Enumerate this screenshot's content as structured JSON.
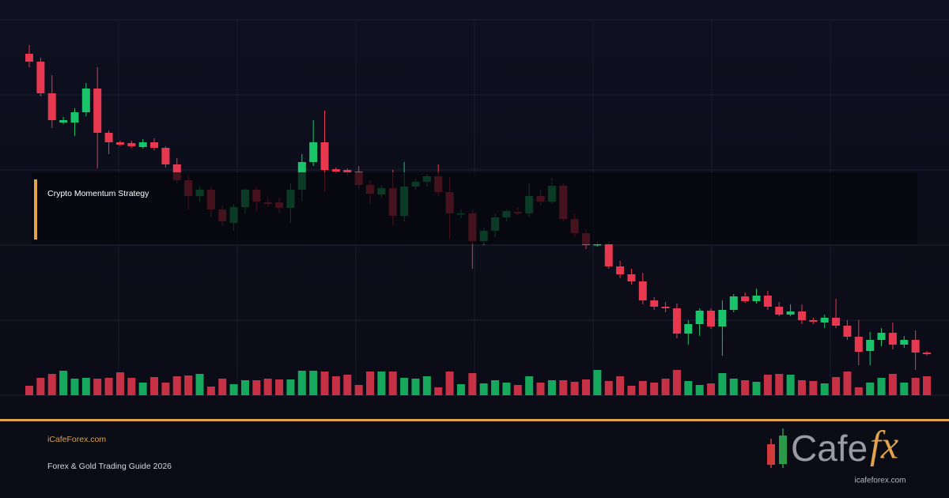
{
  "chart_data": {
    "type": "candlestick",
    "title": "Crypto Momentum Strategy",
    "up_color": "#19c46a",
    "down_color": "#e8384f",
    "ylim": [
      0,
      475
    ],
    "y2lim": [
      0,
      475
    ],
    "open": [
      432,
      422,
      382,
      345,
      345,
      358,
      388,
      332,
      320,
      319,
      314,
      320,
      313,
      292,
      272,
      252,
      260,
      235,
      218,
      238,
      260,
      244,
      244,
      237,
      260,
      295,
      320,
      286,
      285,
      283,
      266,
      254,
      262,
      227,
      264,
      270,
      277,
      257,
      229,
      230,
      195,
      208,
      225,
      232,
      230,
      252,
      245,
      265,
      223,
      205,
      190,
      191,
      163,
      153,
      144,
      120,
      112,
      110,
      78,
      90,
      107,
      87,
      108,
      125,
      119,
      126,
      112,
      102,
      106,
      95,
      92,
      98,
      88,
      74,
      56,
      70,
      79,
      64,
      70,
      54
    ],
    "high": [
      443,
      427,
      405,
      352,
      363,
      395,
      415,
      335,
      322,
      322,
      324,
      325,
      315,
      300,
      278,
      264,
      264,
      240,
      242,
      262,
      264,
      250,
      250,
      268,
      305,
      348,
      360,
      288,
      287,
      290,
      272,
      265,
      285,
      295,
      274,
      280,
      292,
      275,
      235,
      235,
      212,
      230,
      235,
      238,
      268,
      260,
      275,
      268,
      230,
      210,
      194,
      195,
      170,
      160,
      155,
      124,
      118,
      116,
      95,
      110,
      110,
      120,
      128,
      130,
      135,
      132,
      118,
      115,
      115,
      98,
      102,
      122,
      95,
      95,
      80,
      85,
      92,
      75,
      82,
      56
    ],
    "low": [
      415,
      378,
      338,
      343,
      328,
      353,
      287,
      305,
      315,
      313,
      312,
      310,
      288,
      268,
      235,
      245,
      225,
      214,
      208,
      230,
      232,
      238,
      230,
      218,
      245,
      290,
      257,
      280,
      278,
      260,
      242,
      250,
      215,
      220,
      260,
      264,
      252,
      198,
      224,
      160,
      190,
      200,
      220,
      228,
      225,
      240,
      242,
      220,
      200,
      185,
      188,
      160,
      148,
      140,
      115,
      108,
      105,
      72,
      64,
      75,
      84,
      50,
      105,
      117,
      116,
      108,
      100,
      100,
      90,
      90,
      85,
      85,
      70,
      38,
      38,
      62,
      58,
      60,
      32,
      50
    ],
    "close": [
      422,
      382,
      348,
      348,
      358,
      388,
      332,
      320,
      317,
      315,
      320,
      313,
      292,
      272,
      252,
      260,
      235,
      220,
      238,
      260,
      245,
      242,
      237,
      260,
      295,
      320,
      285,
      283,
      282,
      266,
      255,
      262,
      227,
      264,
      270,
      277,
      257,
      230,
      230,
      195,
      208,
      225,
      233,
      230,
      252,
      245,
      265,
      223,
      205,
      190,
      191,
      163,
      153,
      144,
      120,
      112,
      110,
      78,
      90,
      107,
      87,
      108,
      125,
      119,
      126,
      112,
      102,
      106,
      95,
      93,
      98,
      88,
      74,
      55,
      70,
      79,
      64,
      70,
      54,
      52
    ],
    "volume": {
      "axis": "y2",
      "values": [
        12,
        22,
        27,
        31,
        21,
        22,
        21,
        22,
        29,
        22,
        16,
        23,
        16,
        24,
        25,
        27,
        11,
        21,
        14,
        19,
        19,
        21,
        20,
        20,
        31,
        31,
        30,
        24,
        26,
        13,
        30,
        30,
        30,
        22,
        21,
        24,
        10,
        30,
        14,
        28,
        15,
        19,
        16,
        13,
        24,
        16,
        19,
        19,
        17,
        20,
        32,
        18,
        24,
        12,
        18,
        16,
        21,
        32,
        18,
        13,
        15,
        28,
        21,
        19,
        17,
        26,
        27,
        26,
        19,
        18,
        15,
        23,
        30,
        10,
        16,
        22,
        27,
        16,
        22,
        24
      ]
    }
  },
  "footer": {
    "site": "iCafeForex.com",
    "tagline": "Forex & Gold Trading Guide 2026",
    "logo": {
      "word": "Cafe",
      "accent": "fx",
      "url": "icafeforex.com"
    }
  }
}
